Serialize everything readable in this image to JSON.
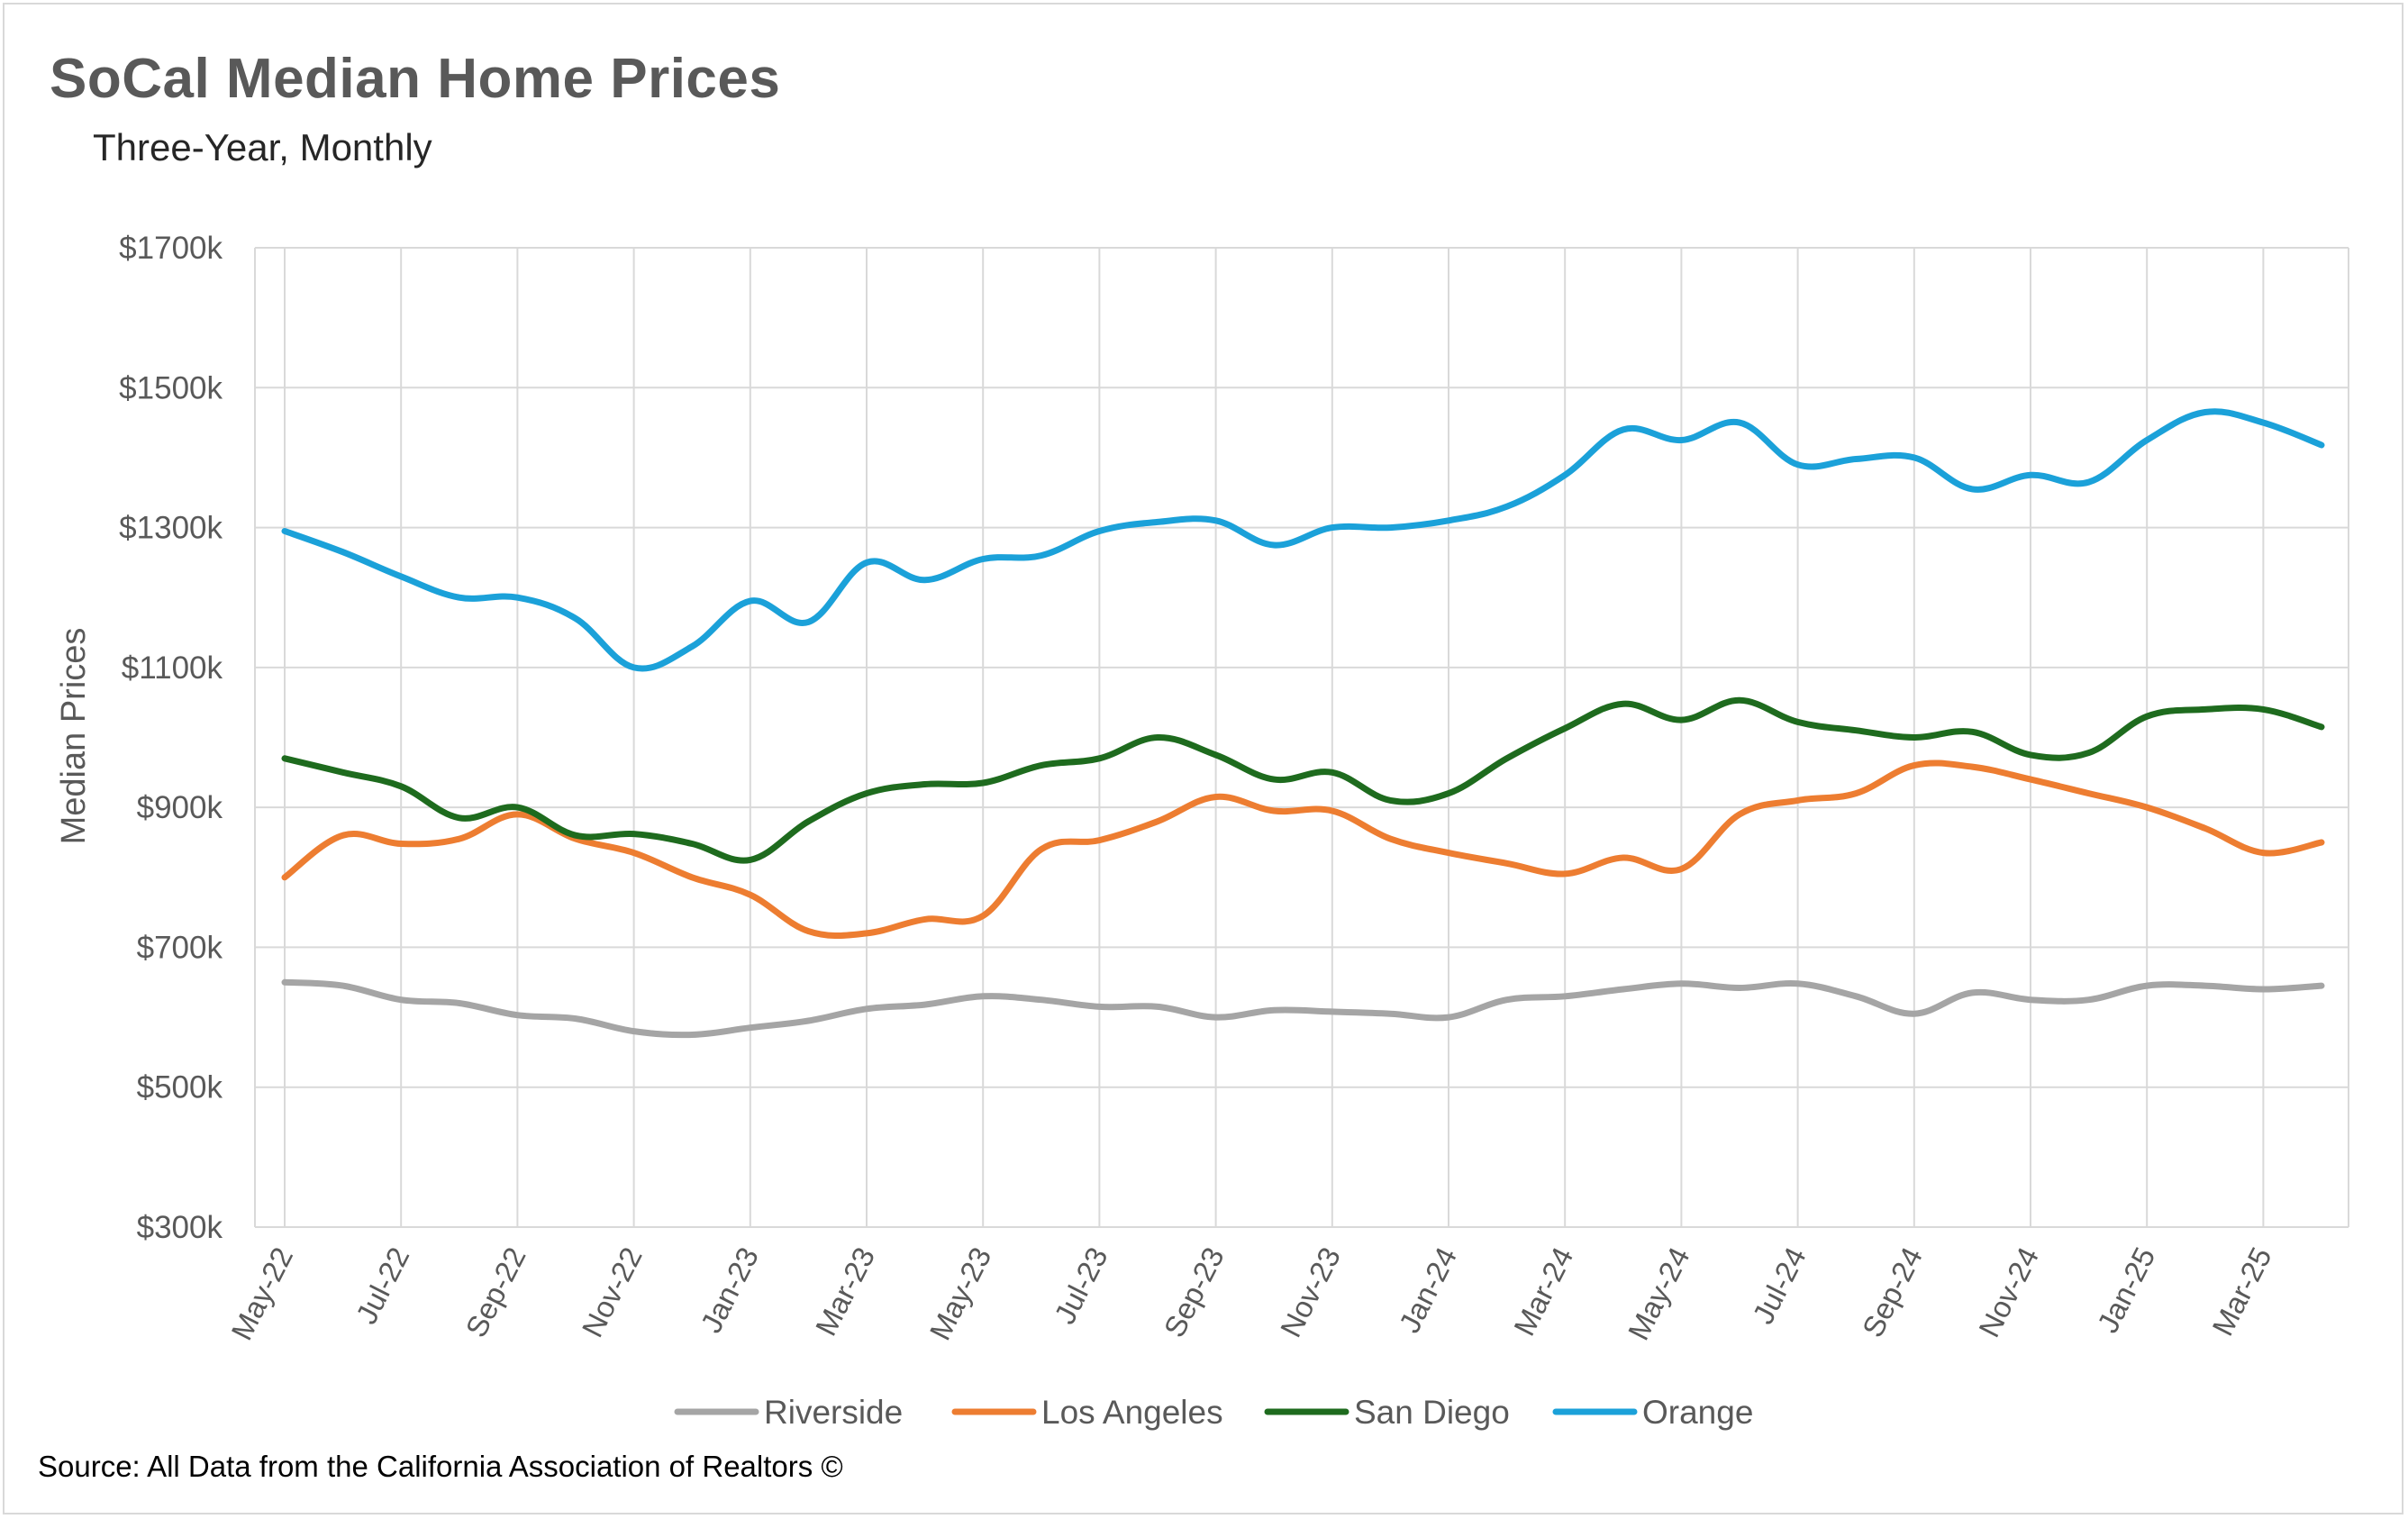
{
  "chart_data": {
    "type": "line",
    "title": "SoCal Median Home Prices",
    "subtitle": "Three-Year, Monthly",
    "ylabel": "Median Prices",
    "xlabel": "",
    "ylim": [
      300,
      1700
    ],
    "y_ticks": [
      300,
      500,
      700,
      900,
      1100,
      1300,
      1500,
      1700
    ],
    "y_tick_labels": [
      "$300k",
      "$500k",
      "$700k",
      "$900k",
      "$1100k",
      "$1300k",
      "$1500k",
      "$1700k"
    ],
    "categories": [
      "May-22",
      "Jun-22",
      "Jul-22",
      "Aug-22",
      "Sep-22",
      "Oct-22",
      "Nov-22",
      "Dec-22",
      "Jan-23",
      "Feb-23",
      "Mar-23",
      "Apr-23",
      "May-23",
      "Jun-23",
      "Jul-23",
      "Aug-23",
      "Sep-23",
      "Oct-23",
      "Nov-23",
      "Dec-23",
      "Jan-24",
      "Feb-24",
      "Mar-24",
      "Apr-24",
      "May-24",
      "Jun-24",
      "Jul-24",
      "Aug-24",
      "Sep-24",
      "Oct-24",
      "Nov-24",
      "Dec-24",
      "Jan-25",
      "Feb-25",
      "Mar-25",
      "Apr-25"
    ],
    "x_tick_labels": [
      "May-22",
      "Jul-22",
      "Sep-22",
      "Nov-22",
      "Jan-23",
      "Mar-23",
      "May-23",
      "Jul-23",
      "Sep-23",
      "Nov-23",
      "Jan-24",
      "Mar-24",
      "May-24",
      "Jul-24",
      "Sep-24",
      "Nov-24",
      "Jan-25",
      "Mar-25"
    ],
    "grid": true,
    "legend_position": "bottom",
    "series": [
      {
        "name": "Riverside",
        "color": "#a5a5a5",
        "values": [
          650,
          645,
          625,
          620,
          603,
          598,
          580,
          575,
          585,
          595,
          612,
          618,
          630,
          625,
          615,
          615,
          600,
          610,
          608,
          605,
          600,
          625,
          630,
          640,
          648,
          642,
          648,
          630,
          605,
          635,
          625,
          625,
          645,
          645,
          640,
          645
        ]
      },
      {
        "name": "Los Angeles",
        "color": "#ed7d31",
        "values": [
          800,
          860,
          848,
          855,
          890,
          855,
          835,
          800,
          775,
          723,
          720,
          740,
          745,
          840,
          853,
          880,
          915,
          895,
          895,
          855,
          835,
          820,
          805,
          828,
          812,
          890,
          910,
          920,
          960,
          958,
          940,
          920,
          900,
          870,
          835,
          850
        ]
      },
      {
        "name": "San Diego",
        "color": "#1e6b1e",
        "values": [
          970,
          950,
          930,
          885,
          900,
          860,
          862,
          848,
          825,
          880,
          920,
          933,
          935,
          960,
          970,
          1000,
          975,
          940,
          950,
          910,
          920,
          970,
          1013,
          1048,
          1025,
          1053,
          1022,
          1010,
          1000,
          1008,
          975,
          978,
          1030,
          1040,
          1040,
          1015
        ]
      },
      {
        "name": "Orange",
        "color": "#1ba1d9",
        "values": [
          1295,
          1265,
          1230,
          1200,
          1200,
          1170,
          1100,
          1130,
          1195,
          1165,
          1250,
          1225,
          1255,
          1260,
          1295,
          1308,
          1310,
          1275,
          1300,
          1300,
          1310,
          1330,
          1375,
          1440,
          1425,
          1450,
          1390,
          1398,
          1400,
          1355,
          1375,
          1365,
          1425,
          1465,
          1450,
          1418
        ]
      }
    ]
  },
  "source": "Source: All Data from the California Association of Realtors ©"
}
